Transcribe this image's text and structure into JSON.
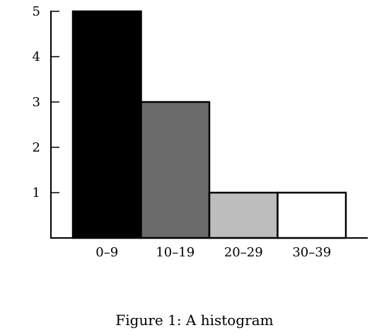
{
  "chart_data": {
    "type": "bar",
    "categories": [
      "0–9",
      "10–19",
      "20–29",
      "30–39"
    ],
    "values": [
      5,
      3,
      1,
      1
    ],
    "bar_colors": [
      "#000000",
      "#6b6b6b",
      "#bdbdbd",
      "#ffffff"
    ],
    "yticks": [
      1,
      2,
      3,
      4,
      5
    ],
    "ylim": [
      0,
      5
    ],
    "title": "",
    "xlabel": "",
    "ylabel": "",
    "grid": false,
    "legend": "none"
  },
  "caption": "Figure 1:  A histogram"
}
